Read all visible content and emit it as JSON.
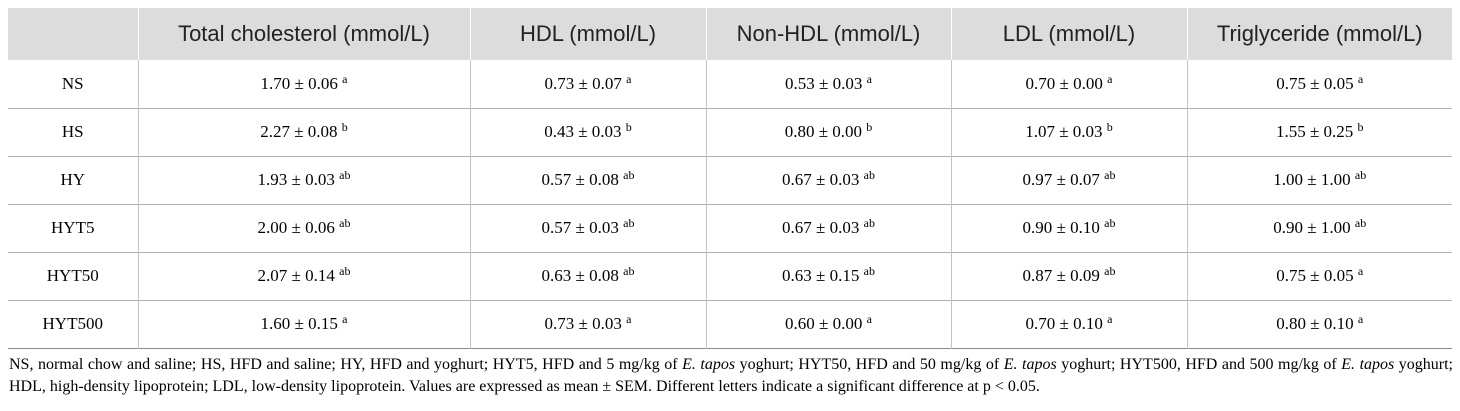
{
  "table": {
    "headers": [
      "",
      "Total cholesterol (mmol/L)",
      "HDL (mmol/L)",
      "Non-HDL (mmol/L)",
      "LDL (mmol/L)",
      "Triglyceride (mmol/L)"
    ],
    "rows": [
      {
        "group": "NS",
        "cells": [
          {
            "v": "1.70 ± 0.06",
            "sig": "a"
          },
          {
            "v": "0.73 ± 0.07",
            "sig": "a"
          },
          {
            "v": "0.53 ± 0.03",
            "sig": "a"
          },
          {
            "v": "0.70 ± 0.00",
            "sig": "a"
          },
          {
            "v": "0.75 ± 0.05",
            "sig": "a"
          }
        ]
      },
      {
        "group": "HS",
        "cells": [
          {
            "v": "2.27 ± 0.08",
            "sig": "b"
          },
          {
            "v": "0.43 ± 0.03",
            "sig": "b"
          },
          {
            "v": "0.80 ± 0.00",
            "sig": "b"
          },
          {
            "v": "1.07 ± 0.03",
            "sig": "b"
          },
          {
            "v": "1.55 ± 0.25",
            "sig": "b"
          }
        ]
      },
      {
        "group": "HY",
        "cells": [
          {
            "v": "1.93 ± 0.03",
            "sig": "ab"
          },
          {
            "v": "0.57 ± 0.08",
            "sig": "ab"
          },
          {
            "v": "0.67 ± 0.03",
            "sig": "ab"
          },
          {
            "v": "0.97 ± 0.07",
            "sig": "ab"
          },
          {
            "v": "1.00 ± 1.00",
            "sig": "ab"
          }
        ]
      },
      {
        "group": "HYT5",
        "cells": [
          {
            "v": "2.00 ± 0.06",
            "sig": "ab"
          },
          {
            "v": "0.57 ± 0.03",
            "sig": "ab"
          },
          {
            "v": "0.67 ± 0.03",
            "sig": "ab"
          },
          {
            "v": "0.90 ± 0.10",
            "sig": "ab"
          },
          {
            "v": "0.90 ± 1.00",
            "sig": "ab"
          }
        ]
      },
      {
        "group": "HYT50",
        "cells": [
          {
            "v": "2.07 ± 0.14",
            "sig": "ab"
          },
          {
            "v": "0.63 ± 0.08",
            "sig": "ab"
          },
          {
            "v": "0.63 ± 0.15",
            "sig": "ab"
          },
          {
            "v": "0.87 ± 0.09",
            "sig": "ab"
          },
          {
            "v": "0.75 ± 0.05",
            "sig": "a"
          }
        ]
      },
      {
        "group": "HYT500",
        "cells": [
          {
            "v": "1.60 ± 0.15",
            "sig": "a"
          },
          {
            "v": "0.73 ± 0.03",
            "sig": "a"
          },
          {
            "v": "0.60 ± 0.00",
            "sig": "a"
          },
          {
            "v": "0.70 ± 0.10",
            "sig": "a"
          },
          {
            "v": "0.80 ± 0.10",
            "sig": "a"
          }
        ]
      }
    ]
  },
  "footnote": {
    "segments": [
      {
        "t": "NS, normal chow and saline; HS, HFD and saline; HY, HFD and yoghurt; HYT5, HFD and 5 mg/kg of ",
        "i": false
      },
      {
        "t": "E. tapos",
        "i": true
      },
      {
        "t": " yoghurt; HYT50, HFD and 50 mg/kg of ",
        "i": false
      },
      {
        "t": "E. tapos",
        "i": true
      },
      {
        "t": " yoghurt; HYT500, HFD and 500 mg/kg of ",
        "i": false
      },
      {
        "t": "E. tapos",
        "i": true
      },
      {
        "t": " yoghurt; HDL, high-density lipoprotein; LDL, low-density lipoprotein. Values are expressed as mean ± SEM. Different letters indicate a significant difference at p < 0.05.",
        "i": false
      }
    ]
  },
  "colors": {
    "header_bg": "#dcdcdc",
    "row_rule": "#b0b0b0"
  }
}
